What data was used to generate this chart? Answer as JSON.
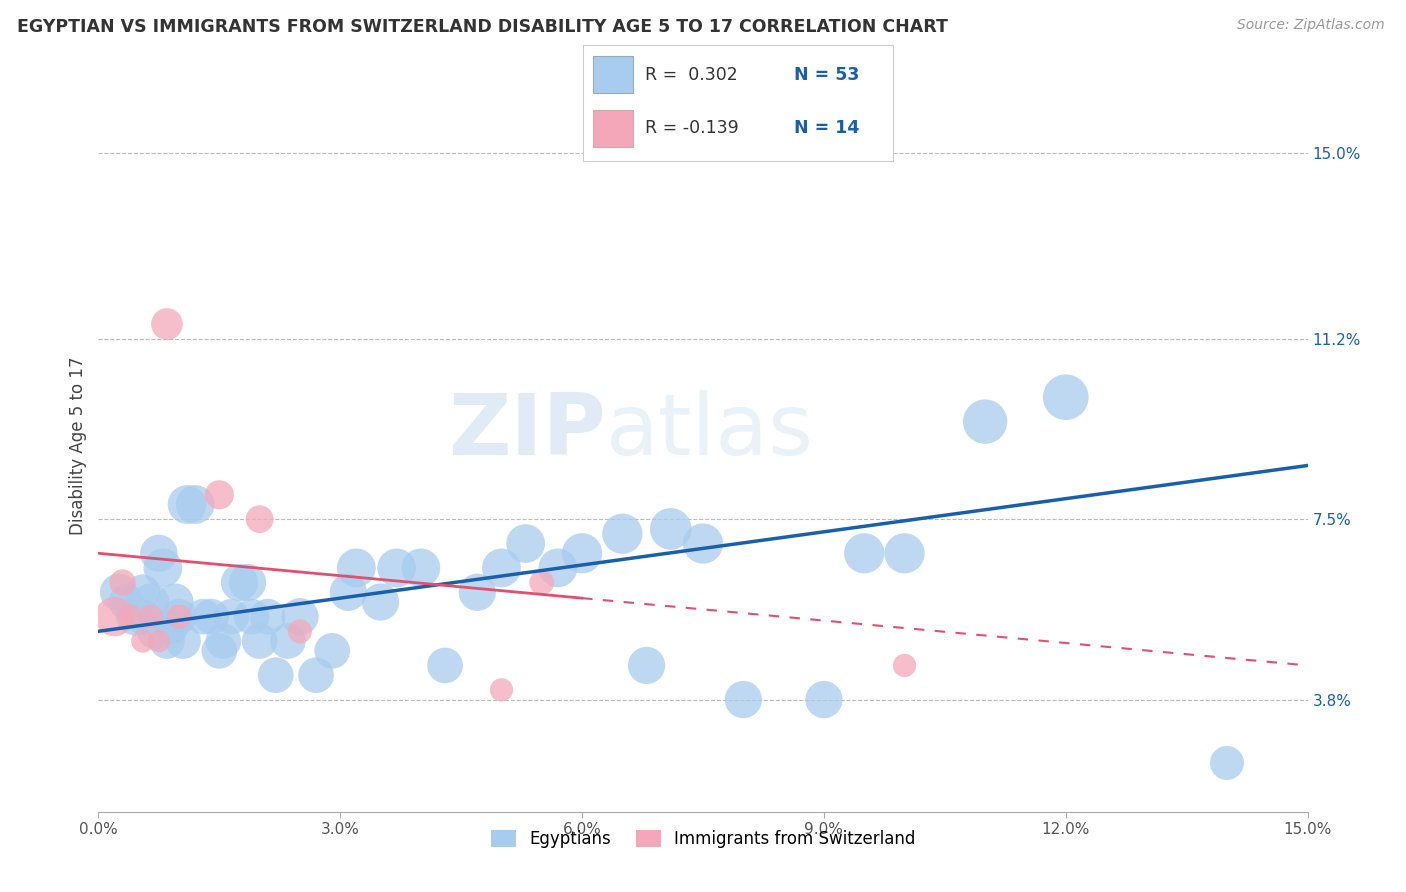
{
  "title": "EGYPTIAN VS IMMIGRANTS FROM SWITZERLAND DISABILITY AGE 5 TO 17 CORRELATION CHART",
  "source": "Source: ZipAtlas.com",
  "xlabel_vals": [
    0.0,
    3.0,
    6.0,
    9.0,
    12.0,
    15.0
  ],
  "ylabel_vals": [
    3.8,
    7.5,
    11.2,
    15.0
  ],
  "xlim": [
    0.0,
    15.0
  ],
  "ylim": [
    1.5,
    16.5
  ],
  "blue_color": "#A8CCEE",
  "pink_color": "#F4A7B9",
  "blue_line_color": "#1A5FAB",
  "pink_line_color": "#E05070",
  "watermark_text": "ZIP",
  "watermark_text2": "atlas",
  "blue_x": [
    0.25,
    0.35,
    0.45,
    0.55,
    0.55,
    0.65,
    0.7,
    0.75,
    0.8,
    0.85,
    0.9,
    0.95,
    1.0,
    1.05,
    1.1,
    1.2,
    1.3,
    1.4,
    1.5,
    1.55,
    1.65,
    1.75,
    1.85,
    1.9,
    2.0,
    2.1,
    2.2,
    2.35,
    2.5,
    2.7,
    2.9,
    3.1,
    3.2,
    3.5,
    3.7,
    4.0,
    4.3,
    4.7,
    5.0,
    5.3,
    5.7,
    6.0,
    6.5,
    6.8,
    7.1,
    7.5,
    8.0,
    9.0,
    9.5,
    10.0,
    11.0,
    12.0,
    14.0
  ],
  "blue_y": [
    6.0,
    5.8,
    5.5,
    6.0,
    5.5,
    5.8,
    5.2,
    6.8,
    6.5,
    5.0,
    5.3,
    5.8,
    5.5,
    5.0,
    7.8,
    7.8,
    5.5,
    5.5,
    4.8,
    5.0,
    5.5,
    6.2,
    6.2,
    5.5,
    5.0,
    5.5,
    4.3,
    5.0,
    5.5,
    4.3,
    4.8,
    6.0,
    6.5,
    5.8,
    6.5,
    6.5,
    4.5,
    6.0,
    6.5,
    7.0,
    6.5,
    6.8,
    7.2,
    4.5,
    7.3,
    7.0,
    3.8,
    3.8,
    6.8,
    6.8,
    9.5,
    10.0,
    2.5
  ],
  "pink_x": [
    0.2,
    0.3,
    0.4,
    0.55,
    0.65,
    0.75,
    0.85,
    1.0,
    1.5,
    2.0,
    2.5,
    5.0,
    5.5,
    10.0
  ],
  "pink_y": [
    5.5,
    6.2,
    5.5,
    5.0,
    5.5,
    5.0,
    11.5,
    5.5,
    8.0,
    7.5,
    5.2,
    4.0,
    6.2,
    4.5
  ],
  "blue_sz": [
    60,
    55,
    60,
    55,
    55,
    60,
    55,
    60,
    65,
    55,
    55,
    60,
    55,
    55,
    65,
    65,
    55,
    55,
    55,
    55,
    55,
    60,
    60,
    55,
    55,
    55,
    55,
    55,
    60,
    55,
    55,
    60,
    65,
    60,
    65,
    65,
    55,
    60,
    65,
    65,
    65,
    70,
    70,
    60,
    75,
    70,
    60,
    60,
    70,
    70,
    85,
    90,
    50
  ],
  "pink_sz": [
    200,
    90,
    75,
    70,
    75,
    65,
    130,
    80,
    110,
    100,
    75,
    70,
    80,
    70
  ],
  "blue_line_start_y": 5.2,
  "blue_line_end_y": 8.6,
  "pink_line_start_y": 6.8,
  "pink_line_end_y": 4.5,
  "pink_solid_end_x": 6.0,
  "legend_r1": "R =  0.302",
  "legend_n1": "N = 53",
  "legend_r2": "R = -0.139",
  "legend_n2": "N = 14"
}
